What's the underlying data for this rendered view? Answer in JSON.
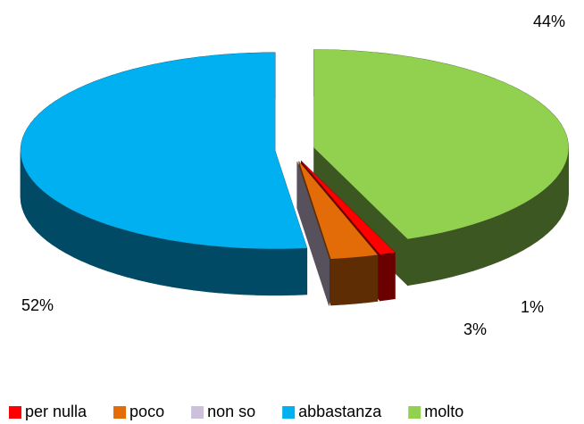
{
  "chart_data": {
    "type": "pie3d",
    "categories": [
      "per nulla",
      "poco",
      "non so",
      "abbastanza",
      "molto"
    ],
    "values": [
      1,
      3,
      0,
      52,
      44
    ],
    "value_labels": [
      "1%",
      "3%",
      null,
      "52%",
      "44%"
    ],
    "colors": [
      "#ff0000",
      "#e36c09",
      "#ccc0da",
      "#00b0f0",
      "#92d050"
    ],
    "legend": "bottom"
  }
}
